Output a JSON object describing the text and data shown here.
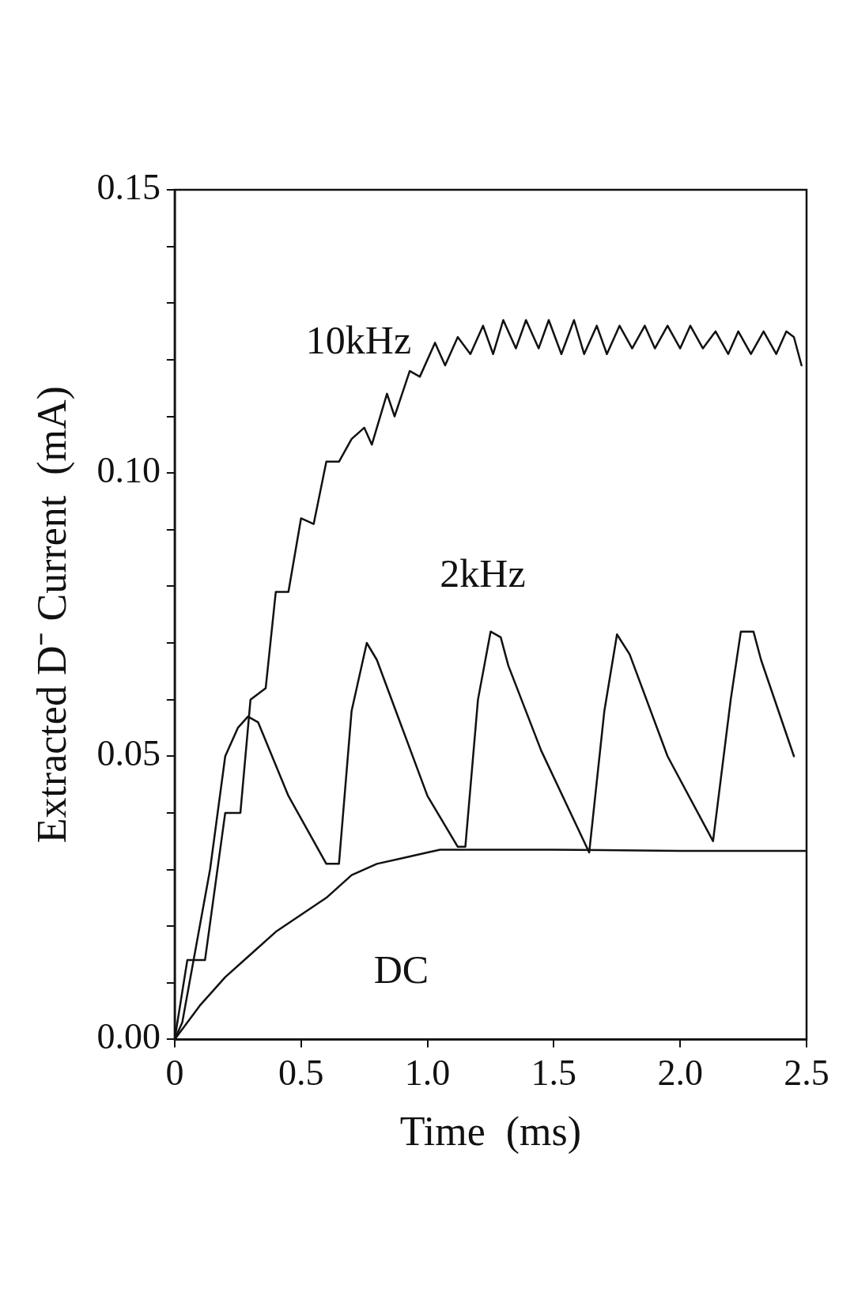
{
  "chart_data": {
    "type": "line",
    "xlabel": "Time  (ms)",
    "ylabel": "Extracted D⁻ Current  (mA)",
    "xlim": [
      0,
      2.5
    ],
    "ylim": [
      0,
      0.15
    ],
    "xticks": [
      {
        "value": 0,
        "label": "0"
      },
      {
        "value": 0.5,
        "label": "0.5"
      },
      {
        "value": 1,
        "label": "1.0"
      },
      {
        "value": 1.5,
        "label": "1.5"
      },
      {
        "value": 2,
        "label": "2.0"
      },
      {
        "value": 2.5,
        "label": "2.5"
      }
    ],
    "yticks": [
      {
        "value": 0,
        "label": "0.00"
      },
      {
        "value": 0.01,
        "label": null
      },
      {
        "value": 0.02,
        "label": null
      },
      {
        "value": 0.03,
        "label": null
      },
      {
        "value": 0.04,
        "label": null
      },
      {
        "value": 0.05,
        "label": "0.05"
      },
      {
        "value": 0.06,
        "label": null
      },
      {
        "value": 0.07,
        "label": null
      },
      {
        "value": 0.08,
        "label": null
      },
      {
        "value": 0.09,
        "label": null
      },
      {
        "value": 0.1,
        "label": "0.10"
      },
      {
        "value": 0.11,
        "label": null
      },
      {
        "value": 0.12,
        "label": null
      },
      {
        "value": 0.13,
        "label": null
      },
      {
        "value": 0.14,
        "label": null
      },
      {
        "value": 0.15,
        "label": "0.15"
      }
    ],
    "grid": false,
    "legend": false,
    "marker": "none",
    "line_style": "solid",
    "series": [
      {
        "name": "10kHz",
        "color": "#111111",
        "x": [
          0,
          0.05,
          0.12,
          0.2,
          0.26,
          0.3,
          0.36,
          0.4,
          0.45,
          0.5,
          0.55,
          0.6,
          0.65,
          0.7,
          0.75,
          0.78,
          0.84,
          0.87,
          0.93,
          0.97,
          1.03,
          1.07,
          1.12,
          1.17,
          1.22,
          1.26,
          1.3,
          1.35,
          1.39,
          1.44,
          1.48,
          1.53,
          1.58,
          1.62,
          1.67,
          1.71,
          1.76,
          1.81,
          1.86,
          1.9,
          1.95,
          2.0,
          2.04,
          2.09,
          2.14,
          2.19,
          2.23,
          2.28,
          2.33,
          2.38,
          2.42,
          2.45,
          2.48
        ],
        "values": [
          0,
          0.014,
          0.014,
          0.04,
          0.04,
          0.06,
          0.062,
          0.079,
          0.079,
          0.092,
          0.091,
          0.102,
          0.102,
          0.106,
          0.108,
          0.105,
          0.114,
          0.11,
          0.118,
          0.117,
          0.123,
          0.119,
          0.124,
          0.121,
          0.126,
          0.121,
          0.127,
          0.122,
          0.127,
          0.122,
          0.127,
          0.121,
          0.127,
          0.121,
          0.126,
          0.121,
          0.126,
          0.122,
          0.126,
          0.122,
          0.126,
          0.122,
          0.126,
          0.122,
          0.125,
          0.121,
          0.125,
          0.121,
          0.125,
          0.121,
          0.125,
          0.124,
          0.119
        ]
      },
      {
        "name": "2kHz",
        "color": "#111111",
        "x": [
          0,
          0.03,
          0.14,
          0.2,
          0.25,
          0.29,
          0.33,
          0.45,
          0.6,
          0.65,
          0.7,
          0.76,
          0.8,
          0.9,
          1.0,
          1.12,
          1.15,
          1.2,
          1.25,
          1.29,
          1.32,
          1.45,
          1.64,
          1.7,
          1.75,
          1.8,
          1.95,
          2.13,
          2.2,
          2.24,
          2.29,
          2.32,
          2.45
        ],
        "values": [
          0,
          0.003,
          0.03,
          0.05,
          0.055,
          0.057,
          0.056,
          0.043,
          0.031,
          0.031,
          0.058,
          0.07,
          0.067,
          0.055,
          0.043,
          0.034,
          0.034,
          0.06,
          0.072,
          0.071,
          0.066,
          0.051,
          0.033,
          0.058,
          0.0715,
          0.068,
          0.05,
          0.035,
          0.06,
          0.072,
          0.072,
          0.067,
          0.05
        ]
      },
      {
        "name": "DC",
        "color": "#111111",
        "x": [
          0,
          0.1,
          0.2,
          0.3,
          0.4,
          0.5,
          0.6,
          0.7,
          0.8,
          0.9,
          1.0,
          1.05,
          1.5,
          2.0,
          2.5
        ],
        "values": [
          0,
          0.006,
          0.011,
          0.015,
          0.019,
          0.022,
          0.025,
          0.029,
          0.031,
          0.032,
          0.033,
          0.0335,
          0.0335,
          0.0333,
          0.0333
        ]
      }
    ]
  }
}
